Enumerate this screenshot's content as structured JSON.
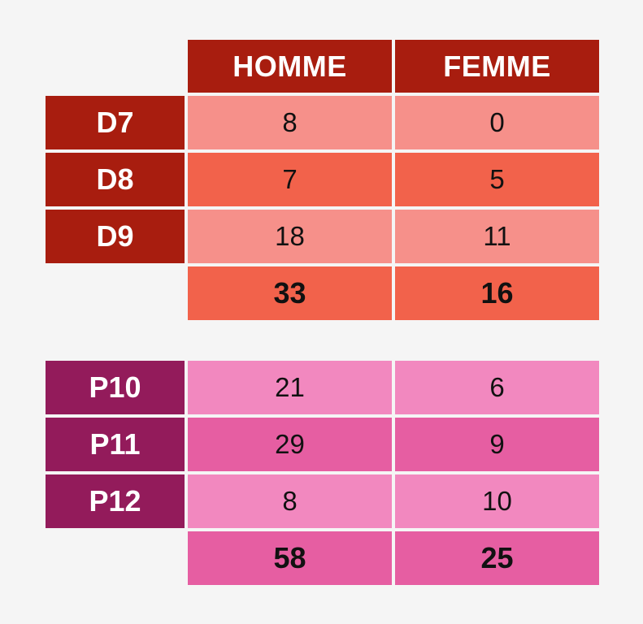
{
  "colors": {
    "background": "#f5f5f5",
    "d_header": "#a81d0f",
    "d_light": "#f6908a",
    "d_dark": "#f2624b",
    "p_header": "#931b5b",
    "p_light": "#f288bf",
    "p_dark": "#e65ea2"
  },
  "columns": [
    "HOMME",
    "FEMME"
  ],
  "group_d": {
    "rows": [
      {
        "label": "D7",
        "homme": "8",
        "femme": "0"
      },
      {
        "label": "D8",
        "homme": "7",
        "femme": "5"
      },
      {
        "label": "D9",
        "homme": "18",
        "femme": "11"
      }
    ],
    "total": {
      "homme": "33",
      "femme": "16"
    }
  },
  "group_p": {
    "rows": [
      {
        "label": "P10",
        "homme": "21",
        "femme": "6"
      },
      {
        "label": "P11",
        "homme": "29",
        "femme": "9"
      },
      {
        "label": "P12",
        "homme": "8",
        "femme": "10"
      }
    ],
    "total": {
      "homme": "58",
      "femme": "25"
    }
  }
}
